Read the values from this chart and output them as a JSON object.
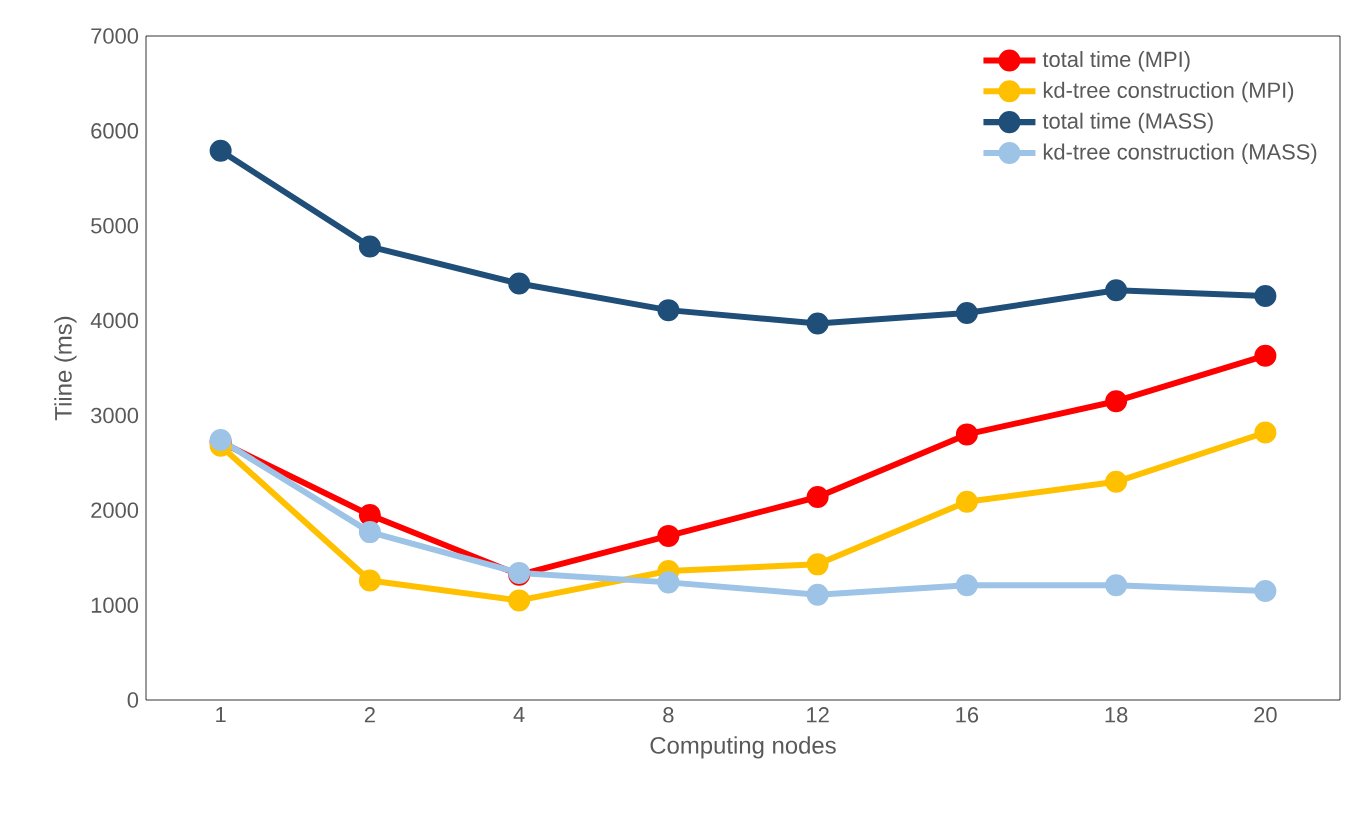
{
  "chart_data": {
    "type": "line",
    "xlabel": "Computing nodes",
    "ylabel": "Tiine (ms)",
    "categories": [
      "1",
      "2",
      "4",
      "8",
      "12",
      "16",
      "18",
      "20"
    ],
    "series": [
      {
        "name": "total time (MPI)",
        "color": "#ff0000",
        "values": [
          2720,
          1950,
          1320,
          1730,
          2140,
          2800,
          3150,
          3630
        ]
      },
      {
        "name": "kd-tree construction (MPI)",
        "color": "#ffc000",
        "values": [
          2680,
          1260,
          1050,
          1360,
          1430,
          2090,
          2300,
          2820
        ]
      },
      {
        "name": "total time (MASS)",
        "color": "#1f4e79",
        "values": [
          5790,
          4780,
          4390,
          4110,
          3970,
          4080,
          4320,
          4260
        ]
      },
      {
        "name": "kd-tree construction (MASS)",
        "color": "#9dc3e6",
        "values": [
          2740,
          1770,
          1340,
          1240,
          1110,
          1210,
          1210,
          1150
        ]
      }
    ],
    "ylim": [
      0,
      7000
    ],
    "yticks": [
      0,
      1000,
      2000,
      3000,
      4000,
      5000,
      6000,
      7000
    ],
    "grid": false,
    "legend": "top right",
    "marker": "circle",
    "line_style": "solid"
  }
}
